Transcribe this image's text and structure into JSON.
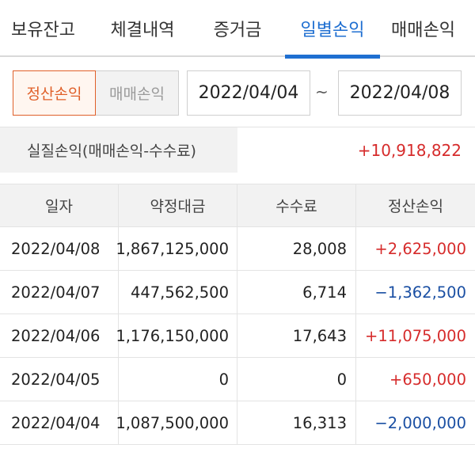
{
  "tabs": [
    {
      "label": "보유잔고",
      "active": false
    },
    {
      "label": "체결내역",
      "active": false
    },
    {
      "label": "증거금",
      "active": false
    },
    {
      "label": "일별손익",
      "active": true
    },
    {
      "label": "매매손익",
      "active": false
    }
  ],
  "filter": {
    "toggle_selected": "정산손익",
    "toggle_other": "매매손익",
    "date_from": "2022/04/04",
    "date_separator": "~",
    "date_to": "2022/04/08"
  },
  "summary": {
    "label": "실질손익(매매손익-수수료)",
    "value": "+10,918,822"
  },
  "table": {
    "columns": [
      "일자",
      "약정대금",
      "수수료",
      "정산손익"
    ],
    "rows": [
      {
        "date": "2022/04/08",
        "amount": "1,867,125,000",
        "fee": "28,008",
        "pnl": "+2,625,000",
        "sign": "pos"
      },
      {
        "date": "2022/04/07",
        "amount": "447,562,500",
        "fee": "6,714",
        "pnl": "−1,362,500",
        "sign": "neg"
      },
      {
        "date": "2022/04/06",
        "amount": "1,176,150,000",
        "fee": "17,643",
        "pnl": "+11,075,000",
        "sign": "pos"
      },
      {
        "date": "2022/04/05",
        "amount": "0",
        "fee": "0",
        "pnl": "+650,000",
        "sign": "pos"
      },
      {
        "date": "2022/04/04",
        "amount": "1,087,500,000",
        "fee": "16,313",
        "pnl": "−2,000,000",
        "sign": "neg"
      }
    ]
  },
  "colors": {
    "accent": "#1f6fd1",
    "toggle_active": "#e0602a",
    "positive": "#d62b2b",
    "negative": "#1a4fa3"
  }
}
